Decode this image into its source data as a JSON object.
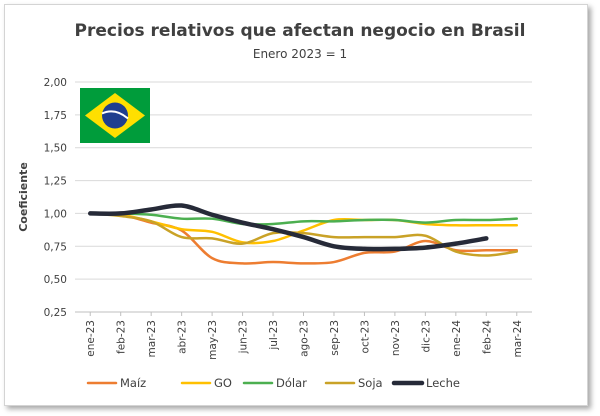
{
  "chart_data": {
    "type": "line",
    "title": "Precios relativos que afectan negocio en Brasil",
    "subtitle": "Enero 2023 = 1",
    "ylabel": "Coeficiente",
    "xlabel": "",
    "ylim": [
      0.25,
      2.0
    ],
    "yticks": [
      "0,25",
      "0,50",
      "0,75",
      "1,00",
      "1,25",
      "1,50",
      "1,75",
      "2,00"
    ],
    "categories": [
      "ene-23",
      "feb-23",
      "mar-23",
      "abr-23",
      "may-23",
      "jun-23",
      "jul-23",
      "ago-23",
      "sep-23",
      "oct-23",
      "nov-23",
      "dic-23",
      "ene-24",
      "feb-24",
      "mar-24"
    ],
    "grid": true,
    "legend_position": "bottom",
    "series": [
      {
        "name": "Maíz",
        "color": "#ed7d31",
        "width": 2.5,
        "values": [
          1.0,
          0.99,
          0.93,
          0.87,
          0.66,
          0.62,
          0.63,
          0.62,
          0.63,
          0.7,
          0.71,
          0.79,
          0.72,
          0.72,
          0.72
        ]
      },
      {
        "name": "GO",
        "color": "#ffc000",
        "width": 2.5,
        "values": [
          1.0,
          0.99,
          0.94,
          0.88,
          0.86,
          0.78,
          0.79,
          0.87,
          0.95,
          0.95,
          0.95,
          0.92,
          0.91,
          0.91,
          0.91
        ]
      },
      {
        "name": "Dólar",
        "color": "#4caf50",
        "width": 2.5,
        "values": [
          1.0,
          1.0,
          0.99,
          0.96,
          0.96,
          0.92,
          0.92,
          0.94,
          0.94,
          0.95,
          0.95,
          0.93,
          0.95,
          0.95,
          0.96
        ]
      },
      {
        "name": "Soja",
        "color": "#c9a227",
        "width": 2.5,
        "values": [
          1.0,
          0.98,
          0.94,
          0.82,
          0.81,
          0.77,
          0.85,
          0.85,
          0.82,
          0.82,
          0.82,
          0.83,
          0.71,
          0.68,
          0.71
        ]
      },
      {
        "name": "Leche",
        "color": "#262a38",
        "width": 4.5,
        "values": [
          1.0,
          1.0,
          1.03,
          1.06,
          0.99,
          0.93,
          0.88,
          0.82,
          0.75,
          0.73,
          0.73,
          0.74,
          0.77,
          0.81,
          null
        ]
      }
    ]
  },
  "flag": {
    "name": "brazil-flag",
    "green": "#009c3b",
    "yellow": "#ffdf00",
    "blue": "#1f3f8f"
  }
}
